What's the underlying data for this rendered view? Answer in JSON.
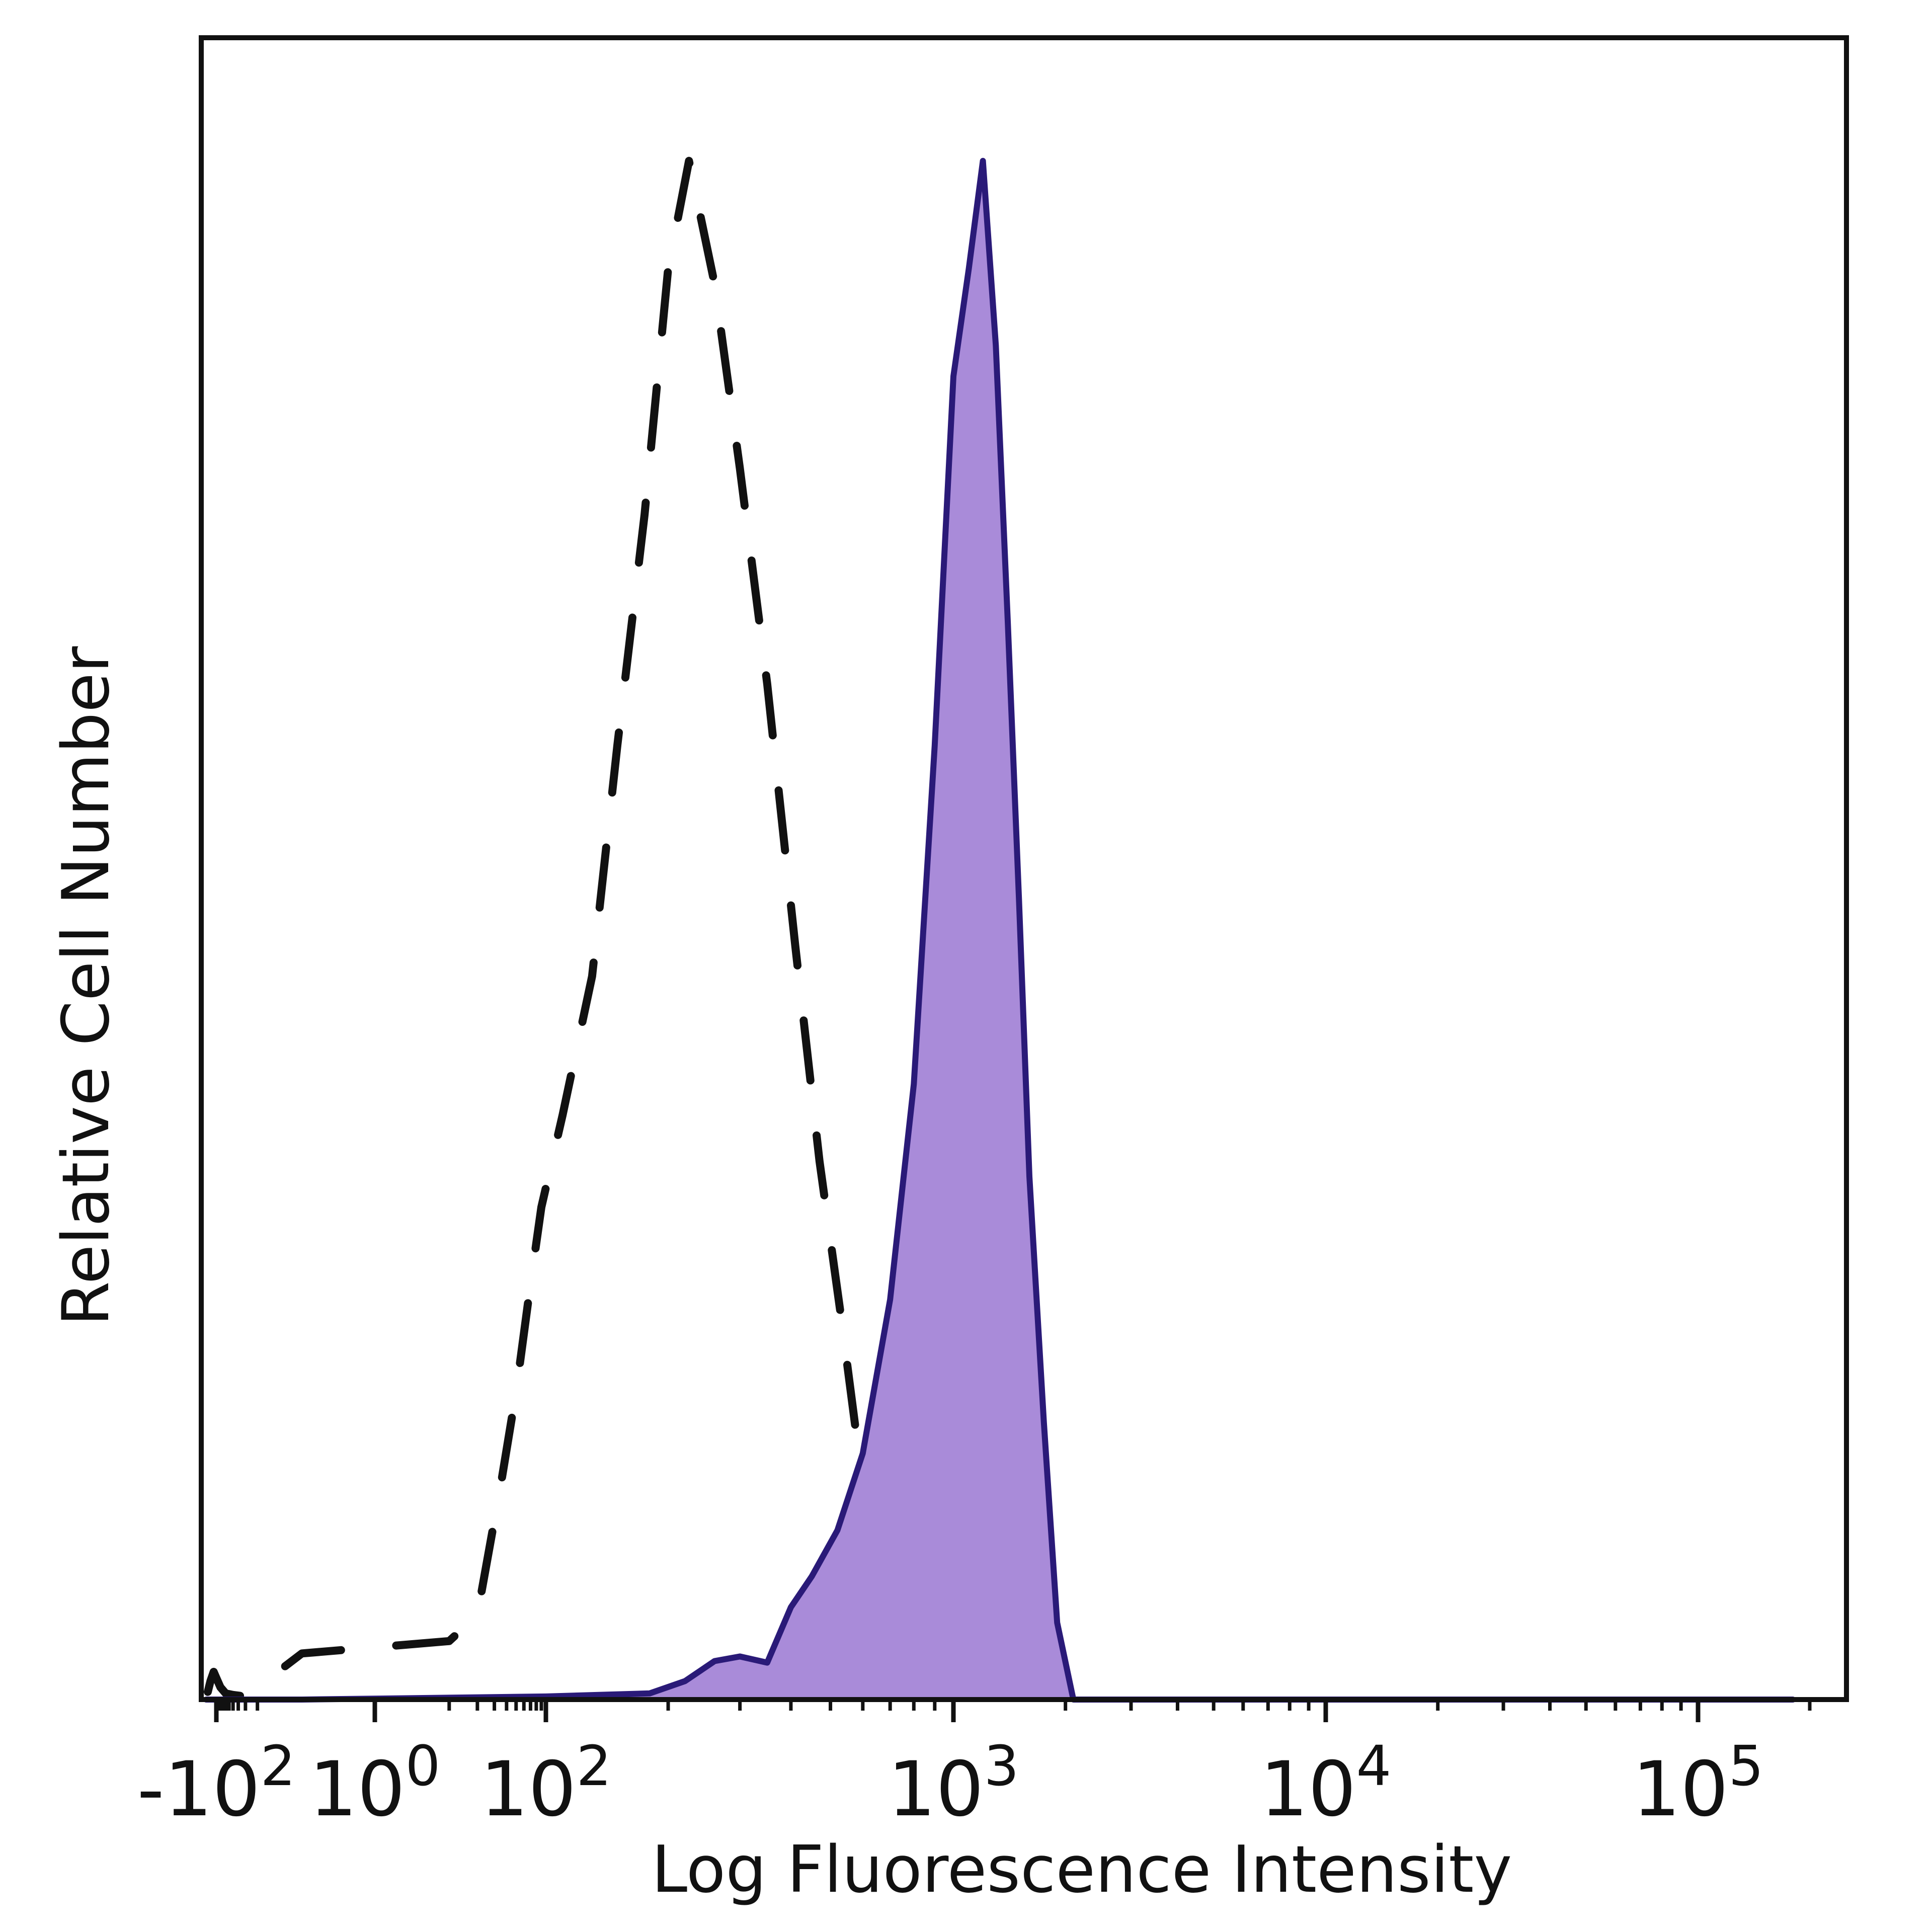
{
  "chart_data": {
    "type": "area",
    "title": "",
    "xlabel": "Log Fluorescence Intensity",
    "ylabel": "Relative Cell Number",
    "x_scale": "biexponential",
    "xlim": [
      -200,
      200000
    ],
    "ylim": [
      0,
      1.08
    ],
    "grid": false,
    "legend": "none",
    "x_ticks": [
      {
        "value": -100,
        "base": "-10",
        "exp": "2"
      },
      {
        "value": 1,
        "base": "10",
        "exp": "0"
      },
      {
        "value": 100,
        "base": "10",
        "exp": "2"
      },
      {
        "value": 1000,
        "base": "10",
        "exp": "3"
      },
      {
        "value": 10000,
        "base": "10",
        "exp": "4"
      },
      {
        "value": 100000,
        "base": "10",
        "exp": "5"
      }
    ],
    "series": [
      {
        "style": "dashed",
        "color": "#111111",
        "x": [
          -180,
          -150,
          -120,
          -100,
          -80,
          -60,
          -40,
          -20,
          0,
          10,
          20,
          35,
          50,
          70,
          90,
          110,
          130,
          150,
          175,
          200,
          225,
          260,
          300,
          350,
          410,
          470,
          530,
          600,
          650,
          700
        ],
        "y": [
          0.005,
          0.012,
          0.018,
          0.014,
          0.008,
          0.004,
          0.003,
          0.002,
          0.03,
          0.038,
          0.055,
          0.14,
          0.2,
          0.27,
          0.32,
          0.38,
          0.47,
          0.62,
          0.77,
          0.93,
          1.0,
          0.92,
          0.8,
          0.66,
          0.49,
          0.35,
          0.25,
          0.14,
          0.08,
          0.05
        ]
      },
      {
        "style": "filled",
        "color": "#2a1a78",
        "fill": "#a98bd9",
        "x": [
          -200,
          0,
          100,
          180,
          220,
          260,
          300,
          350,
          400,
          450,
          520,
          600,
          700,
          800,
          900,
          1000,
          1100,
          1200,
          1300,
          1400,
          1500,
          1600,
          1750,
          1900,
          2100,
          3000,
          10000,
          100000,
          180000
        ],
        "y": [
          0,
          0,
          0.002,
          0.004,
          0.012,
          0.025,
          0.028,
          0.024,
          0.06,
          0.08,
          0.11,
          0.16,
          0.26,
          0.4,
          0.62,
          0.86,
          0.93,
          1.0,
          0.88,
          0.7,
          0.52,
          0.34,
          0.18,
          0.05,
          0.0,
          0.0,
          0.0,
          0.0,
          0.0
        ]
      }
    ]
  }
}
